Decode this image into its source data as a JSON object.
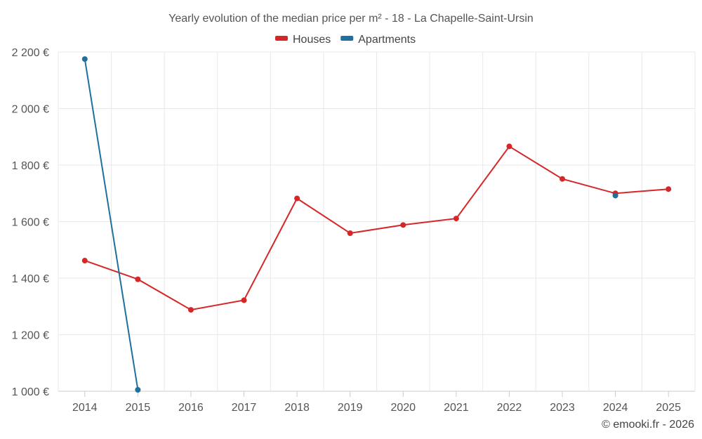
{
  "chart_data": {
    "type": "line",
    "title": "Yearly evolution of the median price per m² - 18 - La Chapelle-Saint-Ursin",
    "categories": [
      "2014",
      "2015",
      "2016",
      "2017",
      "2018",
      "2019",
      "2020",
      "2021",
      "2022",
      "2023",
      "2024",
      "2025"
    ],
    "ylim": [
      1000,
      2200
    ],
    "yticks": [
      1000,
      1200,
      1400,
      1600,
      1800,
      2000,
      2200
    ],
    "ytick_labels": [
      "1 000 €",
      "1 200 €",
      "1 400 €",
      "1 600 €",
      "1 800 €",
      "2 000 €",
      "2 200 €"
    ],
    "grid": true,
    "legend_position": "top-center",
    "series": [
      {
        "name": "Houses",
        "color": "#d62728",
        "values": [
          1462,
          1396,
          1288,
          1322,
          1682,
          1559,
          1588,
          1611,
          1866,
          1751,
          1700,
          1715
        ]
      },
      {
        "name": "Apartments",
        "color": "#1f6f9f",
        "values": [
          2175,
          1005,
          null,
          null,
          null,
          null,
          null,
          null,
          null,
          null,
          1692,
          null
        ]
      }
    ]
  },
  "credit": "© emooki.fr - 2026"
}
